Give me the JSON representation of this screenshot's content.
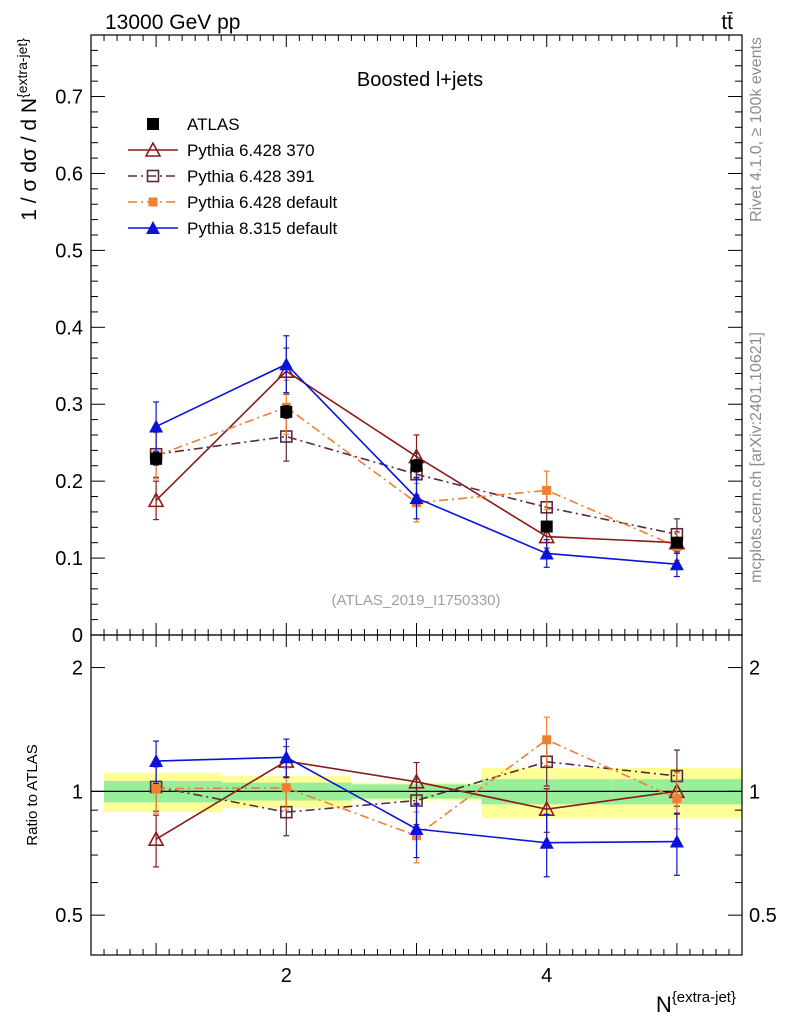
{
  "header": {
    "left": "13000 GeV pp",
    "right": "tt̄"
  },
  "side_labels": {
    "rivet": "Rivet 4.1.0, ≥ 100k events",
    "mcplots": "mcplots.cern.ch [arXiv:2401.10621]"
  },
  "colors": {
    "atlas": "#000000",
    "p370": "#8B1A1A",
    "p391": "#5A2A3A",
    "p6default": "#F07F30",
    "p8default": "#0A14D8",
    "band_inner": "#99EE99",
    "band_outer": "#FFFF99"
  },
  "chart_data": [
    {
      "type": "line",
      "panel": "main",
      "title": "Boosted l+jets",
      "watermark": "(ATLAS_2019_I1750330)",
      "ylabel": "1 / σ dσ / d N",
      "ylabel_sup": "{extra-jet}",
      "xlim": [
        0.5,
        5.5
      ],
      "ylim": [
        0,
        0.78
      ],
      "yticks": [
        0,
        0.1,
        0.2,
        0.3,
        0.4,
        0.5,
        0.6,
        0.7
      ],
      "ytick_labels": [
        "0",
        "0.1",
        "0.2",
        "0.3",
        "0.4",
        "0.5",
        "0.6",
        "0.7"
      ],
      "x": [
        1,
        2,
        3,
        4,
        5
      ],
      "legend_position": "top-left",
      "series": [
        {
          "key": "atlas",
          "name": "ATLAS",
          "marker": "filled-square",
          "line": "none",
          "values": [
            0.229,
            0.29,
            0.22,
            0.141,
            0.12
          ],
          "errors": [
            0.008,
            0.008,
            0.008,
            0.006,
            0.005
          ]
        },
        {
          "key": "p370",
          "name": "Pythia 6.428 370",
          "marker": "open-triangle",
          "line": "solid",
          "values": [
            0.175,
            0.343,
            0.232,
            0.128,
            0.12
          ],
          "errors": [
            0.025,
            0.03,
            0.028,
            0.015,
            0.014
          ]
        },
        {
          "key": "p391",
          "name": "Pythia 6.428 391",
          "marker": "open-square",
          "line": "dashdot",
          "values": [
            0.235,
            0.258,
            0.209,
            0.166,
            0.131
          ],
          "errors": [
            0.03,
            0.032,
            0.027,
            0.02,
            0.02
          ]
        },
        {
          "key": "p6default",
          "name": "Pythia 6.428 default",
          "marker": "filled-small-square",
          "line": "dashdot",
          "values": [
            0.233,
            0.296,
            0.172,
            0.188,
            0.115
          ],
          "errors": [
            0.03,
            0.035,
            0.025,
            0.025,
            0.018
          ]
        },
        {
          "key": "p8default",
          "name": "Pythia 8.315 default",
          "marker": "filled-triangle",
          "line": "solid",
          "values": [
            0.271,
            0.352,
            0.178,
            0.106,
            0.092
          ],
          "errors": [
            0.032,
            0.037,
            0.027,
            0.018,
            0.016
          ]
        }
      ]
    },
    {
      "type": "line",
      "panel": "ratio",
      "ylabel": "Ratio to ATLAS",
      "xlabel": "N",
      "xlabel_sup": "{extra-jet}",
      "xlim": [
        0.5,
        5.5
      ],
      "ylim": [
        0.4,
        2.4
      ],
      "yscale": "log",
      "yticks": [
        0.5,
        1,
        2
      ],
      "ytick_labels": [
        "0.5",
        "1",
        "2"
      ],
      "xticks": [
        2,
        4
      ],
      "xtick_labels": [
        "2",
        "4"
      ],
      "x": [
        1,
        2,
        3,
        4,
        5
      ],
      "bands": {
        "bins": [
          [
            0.6,
            1.5
          ],
          [
            1.5,
            2.5
          ],
          [
            2.5,
            3.5
          ],
          [
            3.5,
            4.5
          ],
          [
            4.5,
            5.5
          ]
        ],
        "inner": [
          [
            0.94,
            1.06
          ],
          [
            0.95,
            1.05
          ],
          [
            0.96,
            1.04
          ],
          [
            0.93,
            1.07
          ],
          [
            0.93,
            1.07
          ]
        ],
        "outer": [
          [
            0.89,
            1.11
          ],
          [
            0.91,
            1.09
          ],
          [
            0.95,
            1.05
          ],
          [
            0.86,
            1.14
          ],
          [
            0.86,
            1.14
          ]
        ]
      },
      "series": [
        {
          "key": "p370",
          "values": [
            0.765,
            1.185,
            1.055,
            0.905,
            1.0
          ],
          "errors": [
            0.11,
            0.1,
            0.12,
            0.11,
            0.12
          ]
        },
        {
          "key": "p391",
          "values": [
            1.025,
            0.89,
            0.95,
            1.18,
            1.09
          ],
          "errors": [
            0.13,
            0.11,
            0.12,
            0.15,
            0.17
          ]
        },
        {
          "key": "p6default",
          "values": [
            1.015,
            1.02,
            0.78,
            1.335,
            0.96
          ],
          "errors": [
            0.13,
            0.12,
            0.11,
            0.18,
            0.15
          ]
        },
        {
          "key": "p8default",
          "values": [
            1.185,
            1.21,
            0.81,
            0.75,
            0.755
          ],
          "errors": [
            0.14,
            0.13,
            0.12,
            0.13,
            0.13
          ]
        }
      ]
    }
  ]
}
